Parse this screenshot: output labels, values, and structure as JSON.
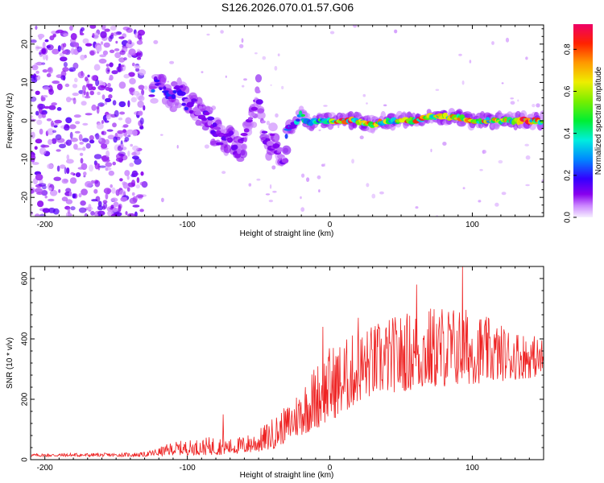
{
  "title": "S126.2026.070.01.57.G06",
  "colors": {
    "snr_line": "#ee2222",
    "frame": "#000000"
  },
  "chart_data": [
    {
      "type": "heatmap",
      "name": "spectrogram",
      "xlabel": "Height of straight line (km)",
      "ylabel": "Frequency (Hz)",
      "xlim": [
        -210,
        150
      ],
      "ylim": [
        -25,
        25
      ],
      "xticks": [
        -200,
        -100,
        0,
        100
      ],
      "xtick_labels": [
        "-200",
        "-100",
        "0",
        "100"
      ],
      "yticks": [
        20,
        10,
        0,
        -10,
        -20
      ],
      "ytick_labels": [
        "20",
        "10",
        "0",
        "-10",
        "-20"
      ],
      "colorbar": {
        "label": "Normalized spectral amplitude",
        "range": [
          0,
          0.92
        ],
        "ticks": [
          0.0,
          0.2,
          0.4,
          0.6,
          0.8
        ],
        "tick_labels": [
          "0.0",
          "0.2",
          "0.4",
          "0.6",
          "0.8"
        ]
      },
      "ridge": [
        {
          "height": -125,
          "frequency": 7,
          "amplitude": 0.25
        },
        {
          "height": -120,
          "frequency": 11,
          "amplitude": 0.2
        },
        {
          "height": -115,
          "frequency": 8,
          "amplitude": 0.2
        },
        {
          "height": -110,
          "frequency": 6,
          "amplitude": 0.22
        },
        {
          "height": -105,
          "frequency": 8,
          "amplitude": 0.2
        },
        {
          "height": -100,
          "frequency": 4,
          "amplitude": 0.18
        },
        {
          "height": -95,
          "frequency": 4,
          "amplitude": 0.18
        },
        {
          "height": -90,
          "frequency": 2,
          "amplitude": 0.15
        },
        {
          "height": -85,
          "frequency": 0,
          "amplitude": 0.15
        },
        {
          "height": -80,
          "frequency": -3,
          "amplitude": 0.14
        },
        {
          "height": -75,
          "frequency": -6,
          "amplitude": 0.14
        },
        {
          "height": -70,
          "frequency": -4,
          "amplitude": 0.14
        },
        {
          "height": -65,
          "frequency": -8,
          "amplitude": 0.14
        },
        {
          "height": -60,
          "frequency": -5,
          "amplitude": 0.13
        },
        {
          "height": -55,
          "frequency": 0,
          "amplitude": 0.12
        },
        {
          "height": -50,
          "frequency": 8,
          "amplitude": 0.12
        },
        {
          "height": -45,
          "frequency": -7,
          "amplitude": 0.15
        },
        {
          "height": -40,
          "frequency": -5,
          "amplitude": 0.16
        },
        {
          "height": -35,
          "frequency": -8,
          "amplitude": 0.14
        },
        {
          "height": -32,
          "frequency": -12,
          "amplitude": 0.12
        },
        {
          "height": -30,
          "frequency": -2,
          "amplitude": 0.25
        },
        {
          "height": -25,
          "frequency": -1,
          "amplitude": 0.3
        },
        {
          "height": -20,
          "frequency": 2,
          "amplitude": 0.45
        },
        {
          "height": -15,
          "frequency": -1,
          "amplitude": 0.5
        },
        {
          "height": -10,
          "frequency": 0,
          "amplitude": 0.55
        },
        {
          "height": 0,
          "frequency": 0,
          "amplitude": 0.7
        },
        {
          "height": 10,
          "frequency": 0,
          "amplitude": 0.85
        },
        {
          "height": 20,
          "frequency": 0,
          "amplitude": 0.8
        },
        {
          "height": 30,
          "frequency": -1,
          "amplitude": 0.75
        },
        {
          "height": 40,
          "frequency": 0,
          "amplitude": 0.7
        },
        {
          "height": 50,
          "frequency": 0,
          "amplitude": 0.75
        },
        {
          "height": 60,
          "frequency": 0,
          "amplitude": 0.9
        },
        {
          "height": 70,
          "frequency": 1,
          "amplitude": 0.8
        },
        {
          "height": 80,
          "frequency": 1,
          "amplitude": 0.7
        },
        {
          "height": 90,
          "frequency": 1,
          "amplitude": 0.85
        },
        {
          "height": 100,
          "frequency": 0,
          "amplitude": 0.9
        },
        {
          "height": 110,
          "frequency": 0,
          "amplitude": 0.75
        },
        {
          "height": 120,
          "frequency": 0,
          "amplitude": 0.8
        },
        {
          "height": 130,
          "frequency": 0,
          "amplitude": 0.85
        },
        {
          "height": 140,
          "frequency": 0,
          "amplitude": 0.85
        },
        {
          "height": 150,
          "frequency": 0,
          "amplitude": 0.7
        }
      ]
    },
    {
      "type": "line",
      "name": "snr",
      "xlabel": "Height of straight line (km)",
      "ylabel": "SNR (10 * v/v)",
      "xlim": [
        -210,
        150
      ],
      "ylim": [
        0,
        640
      ],
      "xticks": [
        -200,
        -100,
        0,
        100
      ],
      "xtick_labels": [
        "-200",
        "-100",
        "0",
        "100"
      ],
      "yticks": [
        0,
        200,
        400,
        600
      ],
      "ytick_labels": [
        "0",
        "200",
        "400",
        "600"
      ],
      "series": [
        {
          "name": "SNR",
          "envelope": {
            "x": [
              -210,
              -180,
              -150,
              -130,
              -120,
              -110,
              -100,
              -90,
              -80,
              -70,
              -60,
              -50,
              -40,
              -30,
              -20,
              -10,
              0,
              10,
              20,
              30,
              40,
              60,
              80,
              100,
              120,
              140,
              150
            ],
            "lower": [
              10,
              10,
              10,
              10,
              12,
              15,
              15,
              15,
              15,
              18,
              20,
              25,
              35,
              60,
              80,
              100,
              130,
              150,
              190,
              210,
              220,
              230,
              240,
              250,
              260,
              270,
              280
            ],
            "upper": [
              20,
              22,
              22,
              25,
              40,
              60,
              65,
              70,
              80,
              70,
              80,
              100,
              140,
              180,
              250,
              320,
              380,
              400,
              430,
              450,
              470,
              500,
              520,
              500,
              450,
              420,
              400
            ]
          },
          "peaks": [
            {
              "x": 93,
              "y": 640
            },
            {
              "x": 61,
              "y": 580
            },
            {
              "x": 20,
              "y": 470
            },
            {
              "x": -5,
              "y": 440
            },
            {
              "x": -75,
              "y": 150
            }
          ]
        }
      ]
    }
  ]
}
